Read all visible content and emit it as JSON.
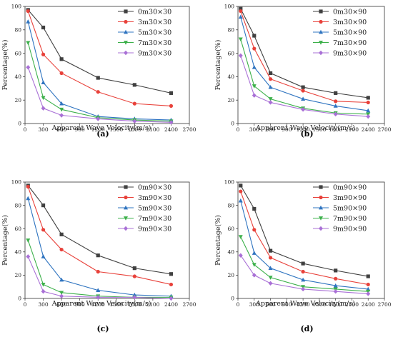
{
  "chart_data": [
    {
      "type": "line",
      "panel_label": "(a)",
      "xlabel": "Apparent Wave Velocity(m/s)",
      "ylabel": "Percentage(%)",
      "xlim": [
        0,
        2700
      ],
      "ylim": [
        0,
        100
      ],
      "xticks": [
        0,
        300,
        600,
        900,
        1200,
        1500,
        1800,
        2100,
        2400,
        2700
      ],
      "yticks": [
        0,
        20,
        40,
        60,
        80,
        100
      ],
      "legend_position": "top-right",
      "x": [
        50,
        300,
        600,
        1200,
        1800,
        2400
      ],
      "series": [
        {
          "name": "0m30×30",
          "color": "#404040",
          "marker": "square",
          "values": [
            97,
            82,
            55,
            39,
            33,
            26
          ]
        },
        {
          "name": "3m30×30",
          "color": "#e8413a",
          "marker": "circle",
          "values": [
            96,
            59,
            43,
            27,
            17,
            15
          ]
        },
        {
          "name": "5m30×30",
          "color": "#2f74c0",
          "marker": "triangle",
          "values": [
            87,
            35,
            17,
            6,
            4,
            3
          ]
        },
        {
          "name": "7m30×30",
          "color": "#3cb04a",
          "marker": "tri-down",
          "values": [
            69,
            22,
            12,
            5,
            3,
            2
          ]
        },
        {
          "name": "9m30×30",
          "color": "#a970d6",
          "marker": "diamond",
          "values": [
            48,
            13,
            7,
            4,
            2,
            1
          ]
        }
      ]
    },
    {
      "type": "line",
      "panel_label": "(b)",
      "xlabel": "Apparent Wave Velocity(m/s)",
      "ylabel": "Percentage(%)",
      "xlim": [
        0,
        2700
      ],
      "ylim": [
        0,
        100
      ],
      "xticks": [
        0,
        300,
        600,
        900,
        1200,
        1500,
        1800,
        2100,
        2400,
        2700
      ],
      "yticks": [
        0,
        20,
        40,
        60,
        80,
        100
      ],
      "legend_position": "top-right",
      "x": [
        50,
        300,
        600,
        1200,
        1800,
        2400
      ],
      "series": [
        {
          "name": "0m30×90",
          "color": "#404040",
          "marker": "square",
          "values": [
            98,
            75,
            43,
            31,
            26,
            22
          ]
        },
        {
          "name": "3m30×90",
          "color": "#e8413a",
          "marker": "circle",
          "values": [
            96,
            64,
            38,
            28,
            19,
            18
          ]
        },
        {
          "name": "5m30×90",
          "color": "#2f74c0",
          "marker": "triangle",
          "values": [
            91,
            48,
            31,
            21,
            15,
            11
          ]
        },
        {
          "name": "7m30×90",
          "color": "#3cb04a",
          "marker": "tri-down",
          "values": [
            72,
            32,
            21,
            13,
            9,
            8
          ]
        },
        {
          "name": "9m30×90",
          "color": "#a970d6",
          "marker": "diamond",
          "values": [
            58,
            24,
            18,
            12,
            8,
            6
          ]
        }
      ]
    },
    {
      "type": "line",
      "panel_label": "(c)",
      "xlabel": "Apparent Wave Velocity(m/s)",
      "ylabel": "Percentage(%)",
      "xlim": [
        0,
        2700
      ],
      "ylim": [
        0,
        100
      ],
      "xticks": [
        0,
        300,
        600,
        900,
        1200,
        1500,
        1800,
        2100,
        2400,
        2700
      ],
      "yticks": [
        0,
        20,
        40,
        60,
        80,
        100
      ],
      "legend_position": "top-right",
      "x": [
        50,
        300,
        600,
        1200,
        1800,
        2400
      ],
      "series": [
        {
          "name": "0m90×30",
          "color": "#404040",
          "marker": "square",
          "values": [
            97,
            80,
            55,
            37,
            26,
            21
          ]
        },
        {
          "name": "3m90×30",
          "color": "#e8413a",
          "marker": "circle",
          "values": [
            96,
            59,
            42,
            23,
            19,
            12
          ]
        },
        {
          "name": "5m90×30",
          "color": "#2f74c0",
          "marker": "triangle",
          "values": [
            86,
            36,
            16,
            7,
            3,
            2
          ]
        },
        {
          "name": "7m90×30",
          "color": "#3cb04a",
          "marker": "tri-down",
          "values": [
            50,
            12,
            5,
            2,
            1,
            1
          ]
        },
        {
          "name": "9m90×30",
          "color": "#a970d6",
          "marker": "diamond",
          "values": [
            36,
            6,
            2,
            1,
            1,
            0
          ]
        }
      ]
    },
    {
      "type": "line",
      "panel_label": "(d)",
      "xlabel": "Apparent Wave Velocity(m/s)",
      "ylabel": "Percentage(%)",
      "xlim": [
        0,
        2700
      ],
      "ylim": [
        0,
        100
      ],
      "xticks": [
        0,
        300,
        600,
        900,
        1200,
        1500,
        1800,
        2100,
        2400,
        2700
      ],
      "yticks": [
        0,
        20,
        40,
        60,
        80,
        100
      ],
      "legend_position": "top-right",
      "x": [
        50,
        300,
        600,
        1200,
        1800,
        2400
      ],
      "series": [
        {
          "name": "0m90×90",
          "color": "#404040",
          "marker": "square",
          "values": [
            97,
            77,
            41,
            30,
            24,
            19
          ]
        },
        {
          "name": "3m90×90",
          "color": "#e8413a",
          "marker": "circle",
          "values": [
            92,
            59,
            35,
            23,
            17,
            12
          ]
        },
        {
          "name": "5m90×90",
          "color": "#2f74c0",
          "marker": "triangle",
          "values": [
            84,
            39,
            26,
            16,
            11,
            8
          ]
        },
        {
          "name": "7m90×90",
          "color": "#3cb04a",
          "marker": "tri-down",
          "values": [
            53,
            29,
            18,
            10,
            8,
            6
          ]
        },
        {
          "name": "9m90×90",
          "color": "#a970d6",
          "marker": "diamond",
          "values": [
            37,
            20,
            13,
            8,
            6,
            4
          ]
        }
      ]
    }
  ]
}
